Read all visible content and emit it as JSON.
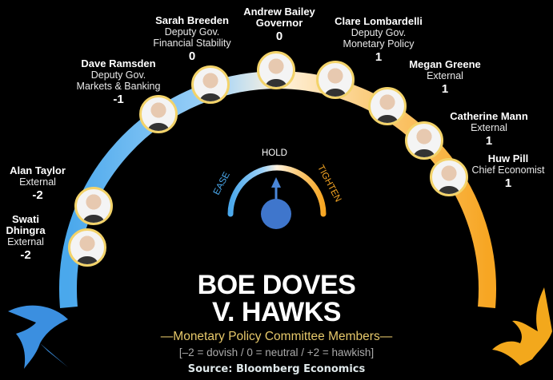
{
  "title_line1": "BOE DOVES",
  "title_line2": "V. HAWKS",
  "subtitle": "—Monetary Policy Committee Members—",
  "scale_note": "[–2 = dovish / 0 = neutral / +2 = hawkish]",
  "source": "Source: Bloomberg Economics",
  "gauge": {
    "left": "EASE",
    "center": "HOLD",
    "right": "TIGHTEN",
    "reading": "HOLD"
  },
  "colors": {
    "dovish": "#4aa8ec",
    "neutral": "#fff3e0",
    "hawkish": "#f7a623",
    "photo_border": "#f3d36a",
    "subtitle": "#e6c86a"
  },
  "icons": {
    "left": "dove-icon",
    "right": "hawk-icon"
  },
  "members": [
    {
      "name": "Swati",
      "name2": "Dhingra",
      "role": "External",
      "role2": "",
      "score": "-2"
    },
    {
      "name": "Alan Taylor",
      "name2": "",
      "role": "External",
      "role2": "",
      "score": "-2"
    },
    {
      "name": "Dave Ramsden",
      "name2": "",
      "role": "Deputy Gov.",
      "role2": "Markets & Banking",
      "score": "-1"
    },
    {
      "name": "Sarah Breeden",
      "name2": "",
      "role": "Deputy Gov.",
      "role2": "Financial Stability",
      "score": "0"
    },
    {
      "name": "Andrew Bailey",
      "name2": "",
      "role": "Governor",
      "role2": "",
      "score": "0"
    },
    {
      "name": "Clare Lombardelli",
      "name2": "",
      "role": "Deputy Gov.",
      "role2": "Monetary Policy",
      "score": "1"
    },
    {
      "name": "Megan Greene",
      "name2": "",
      "role": "External",
      "role2": "",
      "score": "1"
    },
    {
      "name": "Catherine Mann",
      "name2": "",
      "role": "External",
      "role2": "",
      "score": "1"
    },
    {
      "name": "Huw Pill",
      "name2": "",
      "role": "Chief Economist",
      "role2": "",
      "score": "1"
    }
  ]
}
